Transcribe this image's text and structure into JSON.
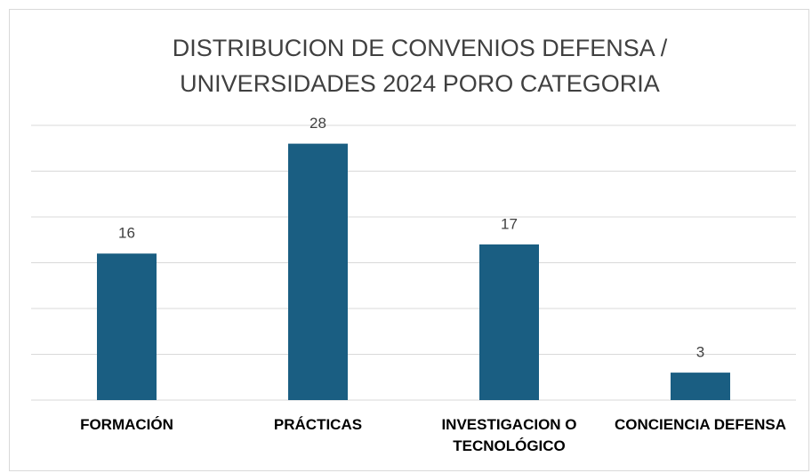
{
  "chart_data": {
    "type": "bar",
    "title": "DISTRIBUCION DE CONVENIOS DEFENSA / UNIVERSIDADES 2024 PORO CATEGORIA",
    "categories": [
      "FORMACIÓN",
      "PRÁCTICAS",
      "INVESTIGACION O TECNOLÓGICO",
      "CONCIENCIA DEFENSA"
    ],
    "values": [
      16,
      28,
      17,
      3
    ],
    "color": "#1a5e82",
    "ylim": [
      0,
      30
    ],
    "yticks": [
      0,
      5,
      10,
      15,
      20,
      25,
      30
    ],
    "grid": true
  }
}
